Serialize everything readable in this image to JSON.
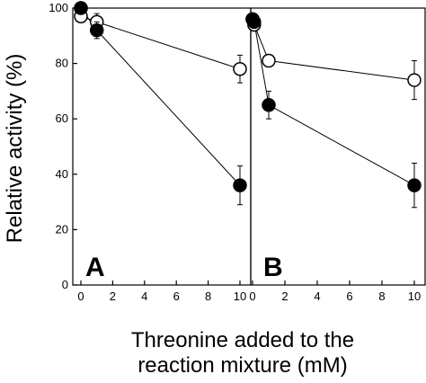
{
  "chart_data": {
    "type": "line",
    "ylabel": "Relative activity (%)",
    "xlabel_line1": "Threonine added to the",
    "xlabel_line2": "reaction mixture (mM)",
    "ylim": [
      0,
      100
    ],
    "yticks": [
      "0",
      "20",
      "40",
      "60",
      "80",
      "100"
    ],
    "xticks": [
      "0",
      "2",
      "4",
      "6",
      "8",
      "10"
    ],
    "grid": false,
    "legend": "none",
    "panels": [
      {
        "label": "A",
        "xlim": [
          0,
          10
        ],
        "series": [
          {
            "marker": "open-circle",
            "x": [
              0,
              0,
              1,
              10
            ],
            "y": [
              100,
              97,
              95,
              78
            ],
            "err": [
              0,
              0,
              3,
              5
            ]
          },
          {
            "marker": "filled-circle",
            "x": [
              0,
              1,
              10
            ],
            "y": [
              100,
              92,
              36
            ],
            "err": [
              0,
              3,
              7
            ]
          }
        ]
      },
      {
        "label": "B",
        "xlim": [
          0,
          10
        ],
        "series": [
          {
            "marker": "open-circle",
            "x": [
              0,
              0.1,
              1.0,
              10
            ],
            "y": [
              96,
              94,
              81,
              74
            ],
            "err": [
              0,
              0,
              2,
              7
            ]
          },
          {
            "marker": "filled-circle",
            "x": [
              0,
              0.1,
              1.0,
              10
            ],
            "y": [
              96,
              95,
              65,
              36
            ],
            "err": [
              0,
              0,
              5,
              8
            ]
          }
        ]
      }
    ]
  }
}
